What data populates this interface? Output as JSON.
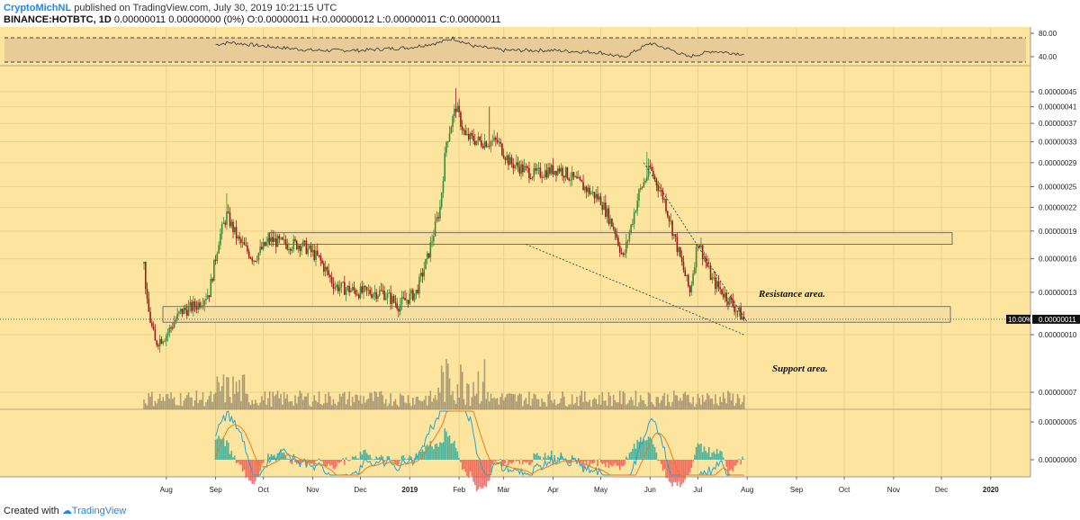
{
  "header": {
    "author": "CryptoMichNL",
    "published": "published on TradingView.com, July 30, 2019 10:21:15 UTC",
    "symbol_line": "BINANCE:HOTBTC, 1D",
    "quote": "0.00000011 0.00000000 (0%) O:0.00000011 H:0.00000012 L:0.00000011 C:0.00000011"
  },
  "footer": {
    "created_with": "Created with",
    "brand": "TradingView"
  },
  "colors": {
    "background": "#fde59f",
    "bull": "#3c8a3a",
    "bear": "#9b1b1b",
    "rsi_band": "#e8cc98",
    "macd_line": "#27a2cf",
    "signal_line": "#e67e22",
    "hist_pos": "#26a69a",
    "hist_neg": "#ef5350",
    "zone_fill": "#f6dfa0"
  },
  "chart_data": {
    "type": "candlestick",
    "symbol": "BINANCE:HOTBTC",
    "interval": "1D",
    "x_tick_labels": [
      "Aug",
      "Sep",
      "Oct",
      "Nov",
      "Dec",
      "2019",
      "Feb",
      "Mar",
      "Apr",
      "May",
      "Jun",
      "Jul",
      "Aug",
      "Sep",
      "Oct",
      "Nov",
      "Dec",
      "2020"
    ],
    "x_range": [
      "2018-07-18",
      "2020-01-26"
    ],
    "price_axis": {
      "ticks": [
        "0.00000045",
        "0.00000041",
        "0.00000037",
        "0.00000033",
        "0.00000029",
        "0.00000025",
        "0.00000022",
        "0.00000019",
        "0.00000016",
        "0.00000013",
        "0.00000010",
        "0.00000007"
      ],
      "scale": "log",
      "last_price_label": "0.00000011",
      "last_price_pct": "10.00%",
      "last_price": 1.1e-07
    },
    "rsi": {
      "ticks": [
        "80.00",
        "40.00"
      ],
      "upper": 70,
      "lower": 30
    },
    "macd": {
      "ticks": [
        "0.00000005",
        "0.00000000"
      ]
    },
    "close_path": [
      [
        "2018-07-18",
        1.55e-07
      ],
      [
        "2018-07-20",
        1.2e-07
      ],
      [
        "2018-07-25",
        9.5e-08
      ],
      [
        "2018-08-01",
        1e-07
      ],
      [
        "2018-08-10",
        1.15e-07
      ],
      [
        "2018-08-20",
        1.2e-07
      ],
      [
        "2018-08-28",
        1.3e-07
      ],
      [
        "2018-09-03",
        1.8e-07
      ],
      [
        "2018-09-08",
        2.1e-07
      ],
      [
        "2018-09-15",
        1.8e-07
      ],
      [
        "2018-09-25",
        1.6e-07
      ],
      [
        "2018-10-05",
        1.8e-07
      ],
      [
        "2018-10-15",
        1.75e-07
      ],
      [
        "2018-10-25",
        1.75e-07
      ],
      [
        "2018-11-05",
        1.6e-07
      ],
      [
        "2018-11-15",
        1.35e-07
      ],
      [
        "2018-12-01",
        1.3e-07
      ],
      [
        "2018-12-15",
        1.3e-07
      ],
      [
        "2018-12-25",
        1.2e-07
      ],
      [
        "2019-01-05",
        1.3e-07
      ],
      [
        "2019-01-12",
        1.6e-07
      ],
      [
        "2019-01-20",
        2.2e-07
      ],
      [
        "2019-01-24",
        3.3e-07
      ],
      [
        "2019-01-30",
        4.1e-07
      ],
      [
        "2019-02-05",
        3.4e-07
      ],
      [
        "2019-02-15",
        3.3e-07
      ],
      [
        "2019-02-25",
        3.3e-07
      ],
      [
        "2019-03-05",
        2.9e-07
      ],
      [
        "2019-03-20",
        2.7e-07
      ],
      [
        "2019-04-05",
        2.8e-07
      ],
      [
        "2019-04-20",
        2.5e-07
      ],
      [
        "2019-05-01",
        2.3e-07
      ],
      [
        "2019-05-10",
        1.9e-07
      ],
      [
        "2019-05-15",
        1.6e-07
      ],
      [
        "2019-05-25",
        2.4e-07
      ],
      [
        "2019-06-01",
        2.8e-07
      ],
      [
        "2019-06-10",
        2.3e-07
      ],
      [
        "2019-06-20",
        1.6e-07
      ],
      [
        "2019-06-26",
        1.3e-07
      ],
      [
        "2019-07-01",
        1.8e-07
      ],
      [
        "2019-07-10",
        1.4e-07
      ],
      [
        "2019-07-20",
        1.25e-07
      ],
      [
        "2019-07-30",
        1.1e-07
      ]
    ],
    "rsi_path": [
      [
        "2018-09-01",
        66
      ],
      [
        "2018-09-10",
        72
      ],
      [
        "2018-10-01",
        62
      ],
      [
        "2018-11-01",
        50
      ],
      [
        "2018-12-01",
        50
      ],
      [
        "2019-01-01",
        58
      ],
      [
        "2019-01-20",
        72
      ],
      [
        "2019-01-28",
        84
      ],
      [
        "2019-02-10",
        62
      ],
      [
        "2019-03-01",
        50
      ],
      [
        "2019-04-01",
        50
      ],
      [
        "2019-05-01",
        44
      ],
      [
        "2019-05-15",
        30
      ],
      [
        "2019-06-01",
        70
      ],
      [
        "2019-06-15",
        50
      ],
      [
        "2019-06-25",
        32
      ],
      [
        "2019-07-10",
        48
      ],
      [
        "2019-07-30",
        40
      ]
    ],
    "annotations": [
      "Resistance area.",
      "Support area."
    ],
    "zones": [
      {
        "label": "Resistance area.",
        "low": 1.75e-07,
        "high": 1.88e-07,
        "from": "2018-10-01",
        "to": "2019-12-01"
      },
      {
        "label": "Support area.",
        "low": 1.08e-07,
        "high": 1.19e-07,
        "from": "2018-07-20",
        "to": "2019-11-30"
      }
    ],
    "trendlines": [
      {
        "from": [
          "2019-03-15",
          1.75e-07
        ],
        "to": [
          "2019-07-30",
          1e-07
        ]
      },
      {
        "from": [
          "2019-05-28",
          2.9e-07
        ],
        "to": [
          "2019-08-01",
          1.08e-07
        ]
      }
    ]
  }
}
